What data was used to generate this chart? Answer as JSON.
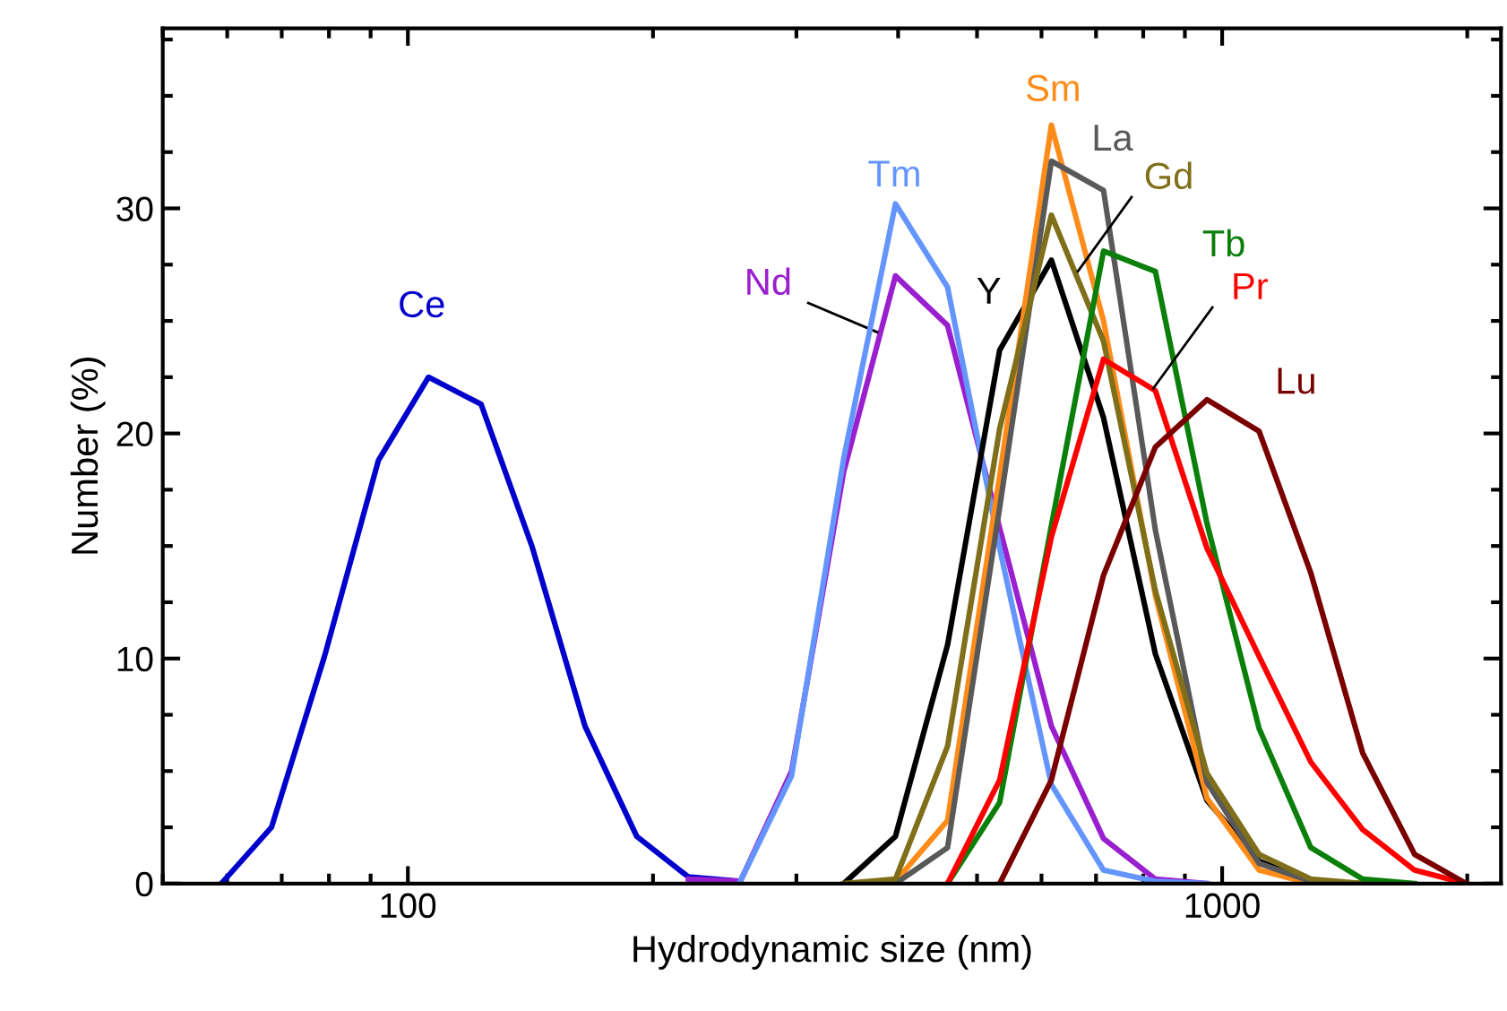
{
  "chart_data": {
    "type": "line",
    "xlabel": "Hydrodynamic size (nm)",
    "ylabel": "Number (%)",
    "log": "x",
    "xlim": [
      50,
      2200
    ],
    "xticks": [
      100,
      1000
    ],
    "ylim": [
      0,
      38
    ],
    "yticks": [
      0,
      10,
      20,
      30
    ],
    "grid": false,
    "legend": false,
    "marker": "none",
    "line_style": "solid",
    "series": [
      {
        "name": "Ce",
        "color": "#0000cc",
        "x": [
          59,
          68,
          79,
          92,
          106,
          123,
          142,
          165,
          191,
          221,
          256
        ],
        "values": [
          0,
          2.5,
          10.1,
          18.8,
          22.5,
          21.3,
          15.0,
          7.0,
          2.1,
          0.3,
          0.1
        ]
      },
      {
        "name": "Nd",
        "color": "#9a1fcf",
        "x": [
          221,
          256,
          296,
          343,
          397,
          460,
          533,
          617,
          715,
          828,
          958
        ],
        "values": [
          0.2,
          0.1,
          5.0,
          18.3,
          27.0,
          24.8,
          15.8,
          7.0,
          2.0,
          0.2,
          0
        ]
      },
      {
        "name": "Tm",
        "color": "#6495ff",
        "x": [
          256,
          296,
          343,
          397,
          460,
          533,
          617,
          715,
          828,
          958
        ],
        "values": [
          0.1,
          4.8,
          18.9,
          30.2,
          26.5,
          14.9,
          4.4,
          0.6,
          0.1,
          0
        ]
      },
      {
        "name": "Y",
        "color": "#000000",
        "x": [
          343,
          397,
          460,
          533,
          617,
          715,
          828,
          958,
          1110,
          1285,
          1488
        ],
        "values": [
          0,
          2.1,
          10.6,
          23.7,
          27.7,
          20.7,
          10.2,
          3.7,
          1.0,
          0.1,
          0
        ]
      },
      {
        "name": "Sm",
        "color": "#ff8c1a",
        "x": [
          397,
          460,
          533,
          617,
          715,
          828,
          958,
          1110,
          1285,
          1488
        ],
        "values": [
          0.1,
          2.8,
          18.1,
          33.7,
          25.0,
          12.8,
          3.8,
          0.6,
          0,
          0
        ]
      },
      {
        "name": "La",
        "color": "#595959",
        "x": [
          397,
          460,
          533,
          617,
          715,
          828,
          958,
          1110,
          1285,
          1488
        ],
        "values": [
          0,
          1.6,
          16.7,
          32.1,
          30.8,
          15.7,
          4.5,
          0.9,
          0.1,
          0
        ]
      },
      {
        "name": "Gd",
        "color": "#7f6f1a",
        "x": [
          343,
          397,
          460,
          533,
          617,
          715,
          828,
          958,
          1110,
          1285,
          1488
        ],
        "values": [
          0,
          0.2,
          6.1,
          20.2,
          29.7,
          24.1,
          13.0,
          4.9,
          1.3,
          0.2,
          0
        ]
      },
      {
        "name": "Tb",
        "color": "#0a7f0a",
        "x": [
          460,
          533,
          617,
          715,
          828,
          958,
          1110,
          1285,
          1488,
          1723
        ],
        "values": [
          0,
          3.6,
          15.9,
          28.1,
          27.2,
          16.0,
          6.9,
          1.6,
          0.2,
          0
        ]
      },
      {
        "name": "Pr",
        "color": "#ff0000",
        "x": [
          460,
          533,
          617,
          715,
          828,
          958,
          1110,
          1285,
          1488,
          1723,
          1995
        ],
        "values": [
          0,
          4.6,
          15.4,
          23.3,
          21.9,
          14.9,
          10.1,
          5.4,
          2.4,
          0.6,
          0
        ]
      },
      {
        "name": "Lu",
        "color": "#7a0000",
        "x": [
          533,
          617,
          715,
          828,
          958,
          1110,
          1285,
          1488,
          1723,
          1995
        ],
        "values": [
          0,
          4.6,
          13.7,
          19.4,
          21.5,
          20.1,
          13.8,
          5.8,
          1.3,
          0
        ]
      }
    ]
  }
}
